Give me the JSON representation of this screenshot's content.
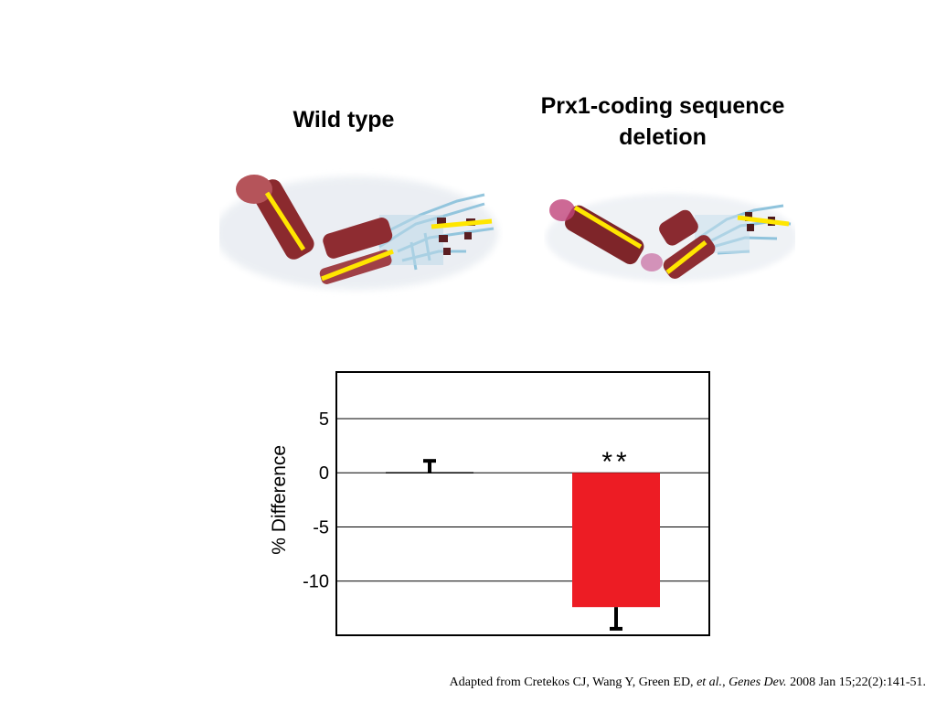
{
  "labels": {
    "wild_type": "Wild type",
    "deletion_line1": "Prx1-coding sequence",
    "deletion_line2": "deletion"
  },
  "chart_data": {
    "type": "bar",
    "categories": [
      "Wild type",
      "Prx1-coding sequence deletion"
    ],
    "values": [
      0,
      -12.4
    ],
    "errors": [
      1.1,
      2.0
    ],
    "ylabel": "% Difference",
    "ylim": [
      -15,
      9.3
    ],
    "yticks": [
      "5",
      "0",
      "-5",
      "-10"
    ],
    "ytick_values": [
      5,
      0,
      -5,
      -10
    ],
    "annotation": "**",
    "grid": true,
    "bar_color": "#ed1c24"
  },
  "citation": {
    "prefix": "Adapted from Cretekos CJ, Wang Y, Green ED, ",
    "etal": "et al.",
    "sep": ", ",
    "journal": "Genes Dev.",
    "suffix": " 2008 Jan 15;22(2):141-51."
  },
  "colors": {
    "bone": "#8b2a2e",
    "cartilage": "#8fc3dc",
    "measure_line": "#ffe600"
  }
}
